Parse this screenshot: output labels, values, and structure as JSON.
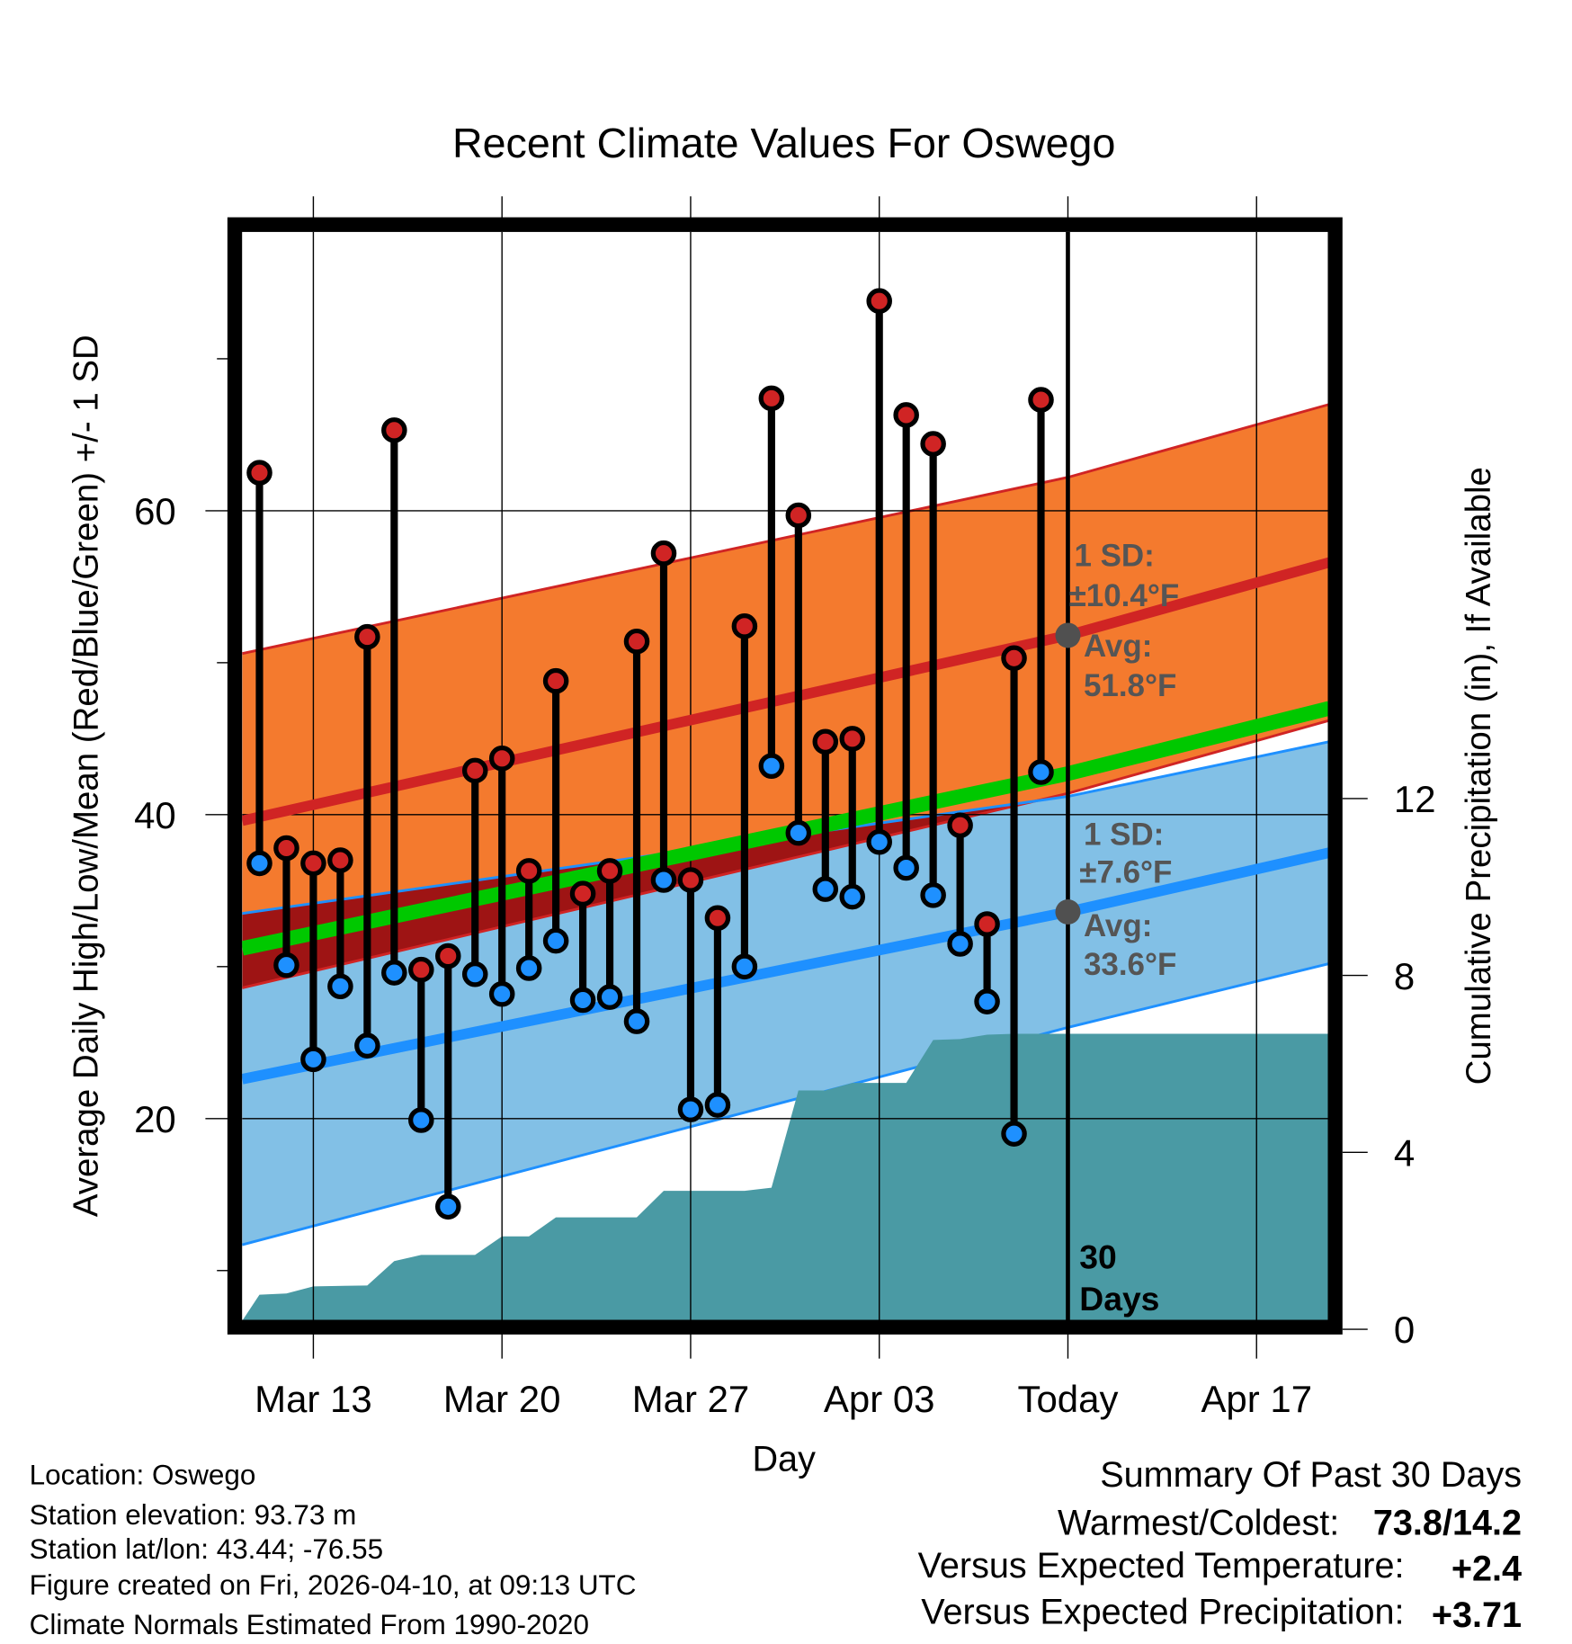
{
  "chart_data": {
    "type": "line",
    "title": "Recent Climate Values For Oswego",
    "xlabel": "Day",
    "ylabel": "Average Daily High/Low/Mean (Red/Blue/Green) +/- 1 SD",
    "y2label": "Cumulative Precipitation (in), If Available",
    "ylim": [
      6.7,
      78.3
    ],
    "y2lim": [
      0,
      24.8
    ],
    "x_ticks": [
      {
        "label": "Mar 13",
        "day": 0
      },
      {
        "label": "Mar 20",
        "day": 7
      },
      {
        "label": "Mar 27",
        "day": 14
      },
      {
        "label": "Apr 03",
        "day": 21
      },
      {
        "label": "Today",
        "day": 28
      },
      {
        "label": "Apr 17",
        "day": 35
      }
    ],
    "y_ticks": [
      20,
      40,
      60
    ],
    "y_minor_ticks": [
      10,
      30,
      50,
      70
    ],
    "y2_ticks": [
      0,
      4,
      8,
      12
    ],
    "x_range_days": [
      -2.64,
      37.7
    ],
    "days": [
      -2,
      -1,
      0,
      1,
      2,
      3,
      4,
      5,
      6,
      7,
      8,
      9,
      10,
      11,
      12,
      13,
      14,
      15,
      16,
      17,
      18,
      19,
      20,
      21,
      22,
      23,
      24,
      25,
      26,
      27
    ],
    "series": [
      {
        "name": "Daily High",
        "color": "#d02424",
        "values": [
          62.5,
          37.8,
          36.8,
          37.0,
          51.7,
          65.3,
          29.8,
          30.7,
          42.9,
          43.7,
          36.3,
          48.8,
          34.8,
          36.3,
          51.4,
          57.2,
          35.7,
          33.2,
          52.4,
          67.4,
          59.7,
          44.8,
          45.0,
          73.8,
          66.3,
          64.4,
          39.3,
          32.8,
          50.3,
          67.3
        ]
      },
      {
        "name": "Daily Low",
        "color": "#1e90ff",
        "values": [
          36.8,
          30.1,
          23.9,
          28.7,
          24.8,
          29.6,
          19.9,
          14.2,
          29.5,
          28.2,
          29.9,
          31.7,
          27.8,
          28.0,
          26.4,
          35.7,
          20.6,
          20.9,
          30.0,
          43.2,
          38.8,
          35.1,
          34.6,
          38.2,
          36.5,
          34.7,
          31.5,
          27.7,
          19.0,
          42.8
        ]
      }
    ],
    "normals": {
      "days": [
        -2.64,
        28,
        37.7
      ],
      "high_mean": [
        39.6,
        51.8,
        56.6
      ],
      "high_sd": [
        11.0,
        10.4,
        10.4
      ],
      "low_mean": [
        22.6,
        33.6,
        37.5
      ],
      "low_sd": [
        10.9,
        7.6,
        7.3
      ],
      "mean": [
        31.2,
        42.7,
        47.0
      ]
    },
    "precip_cumulative": {
      "days": [
        -2.64,
        -2,
        -1,
        0,
        2,
        3,
        4,
        6,
        7,
        8,
        9,
        12,
        13,
        16,
        17,
        18,
        19,
        20,
        22,
        23,
        24,
        25,
        26,
        37.7
      ],
      "values": [
        0.19,
        0.78,
        0.81,
        0.97,
        0.99,
        1.54,
        1.68,
        1.68,
        2.1,
        2.1,
        2.53,
        2.53,
        3.13,
        3.13,
        3.2,
        5.4,
        5.4,
        5.57,
        5.57,
        6.54,
        6.56,
        6.66,
        6.68,
        6.68
      ]
    },
    "annotations": {
      "high_sd": [
        "1 SD:",
        "±10.4°F"
      ],
      "high_avg": [
        "Avg:",
        "51.8°F"
      ],
      "low_sd": [
        "1 SD:",
        "±7.6°F"
      ],
      "low_avg": [
        "Avg:",
        "33.6°F"
      ],
      "window": [
        "30",
        "Days"
      ]
    },
    "colors": {
      "high_band": "#f47a2e",
      "overlap": "#9e1414",
      "low_band": "#82c0e6",
      "high_line": "#d02424",
      "low_line": "#1e90ff",
      "mean_line": "#00c800",
      "precip": "#4a9aa4",
      "annotation": "#555555"
    }
  },
  "footer": {
    "location": "Location: Oswego",
    "elevation": "Station elevation: 93.73 m",
    "latlon": "Station lat/lon: 43.44; -76.55",
    "created": "Figure created on Fri, 2026-04-10, at 09:13 UTC",
    "normals": "Climate Normals Estimated From 1990-2020"
  },
  "summary": {
    "title": "Summary Of Past 30 Days",
    "warmest_label": "Warmest/Coldest:",
    "warmest_value": "73.8/14.2",
    "temp_label": "Versus Expected Temperature:",
    "temp_value": "+2.4",
    "temp_color": "#d02424",
    "precip_label": "Versus Expected Precipitation:",
    "precip_value": "+3.71",
    "precip_color": "#1ec81e"
  }
}
